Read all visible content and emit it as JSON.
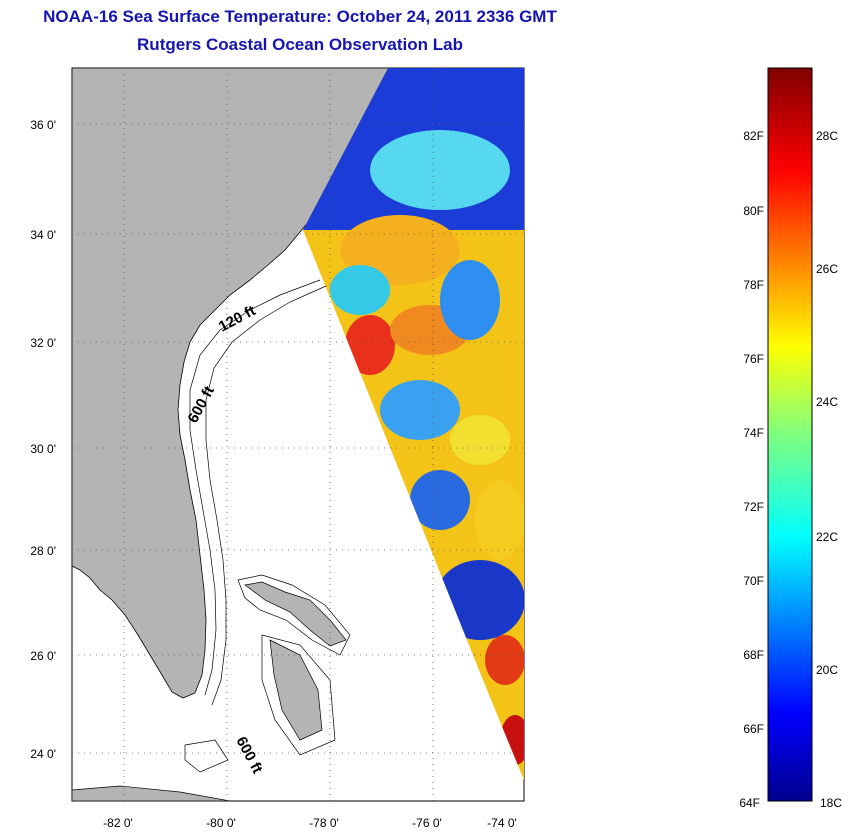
{
  "title": "NOAA-16 Sea Surface Temperature:  October 24, 2011 2336 GMT",
  "subtitle": "Rutgers Coastal Ocean Observation Lab",
  "map": {
    "lon_ticks": [
      "-82 0'",
      "-80 0'",
      "-78 0'",
      "-76 0'",
      "-74 0'"
    ],
    "lat_ticks": [
      "36 0'",
      "34 0'",
      "32 0'",
      "30 0'",
      "28 0'",
      "26 0'",
      "24 0'"
    ],
    "contour_labels": [
      "120 ft",
      "600 ft",
      "600 ft"
    ],
    "colors": {
      "land": "#b4b4b4",
      "water": "#ffffff",
      "coast": "#000000"
    }
  },
  "colorbar": {
    "fahrenheit_labels": [
      "82F",
      "80F",
      "78F",
      "76F",
      "74F",
      "72F",
      "70F",
      "68F",
      "66F",
      "64F"
    ],
    "celsius_labels": [
      "28C",
      "26C",
      "24C",
      "22C",
      "20C",
      "18C"
    ],
    "colormap": "jet"
  }
}
